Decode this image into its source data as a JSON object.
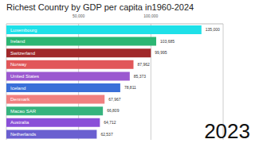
{
  "chart_data": {
    "type": "bar",
    "orientation": "horizontal",
    "title": "Richest Country by GDP per capita in1960-2024",
    "annotation": "2023",
    "categories": [
      "Luxembourg",
      "Ireland",
      "Switzerland",
      "Norway",
      "United States",
      "Iceland",
      "Denmark",
      "Macao SAR",
      "Australia",
      "Netherlands"
    ],
    "values": [
      135000,
      103685,
      99995,
      87962,
      85373,
      78811,
      67967,
      66809,
      64712,
      62537
    ],
    "value_labels": [
      "135,000",
      "103,685",
      "99,995",
      "87,962",
      "85,373",
      "78,811",
      "67,967",
      "66,809",
      "64,712",
      "62,537"
    ],
    "colors": [
      "#1fe0e8",
      "#2bb673",
      "#a0282a",
      "#e15759",
      "#9b59d0",
      "#3a6fd8",
      "#f08080",
      "#36b37e",
      "#8a4fd8",
      "#6a5fd0"
    ],
    "xlim": [
      0,
      150000
    ],
    "xticks": [
      {
        "value": 50000,
        "label": "50,000"
      },
      {
        "value": 100000,
        "label": "100,000"
      }
    ],
    "grid": true,
    "data_labels": true
  }
}
